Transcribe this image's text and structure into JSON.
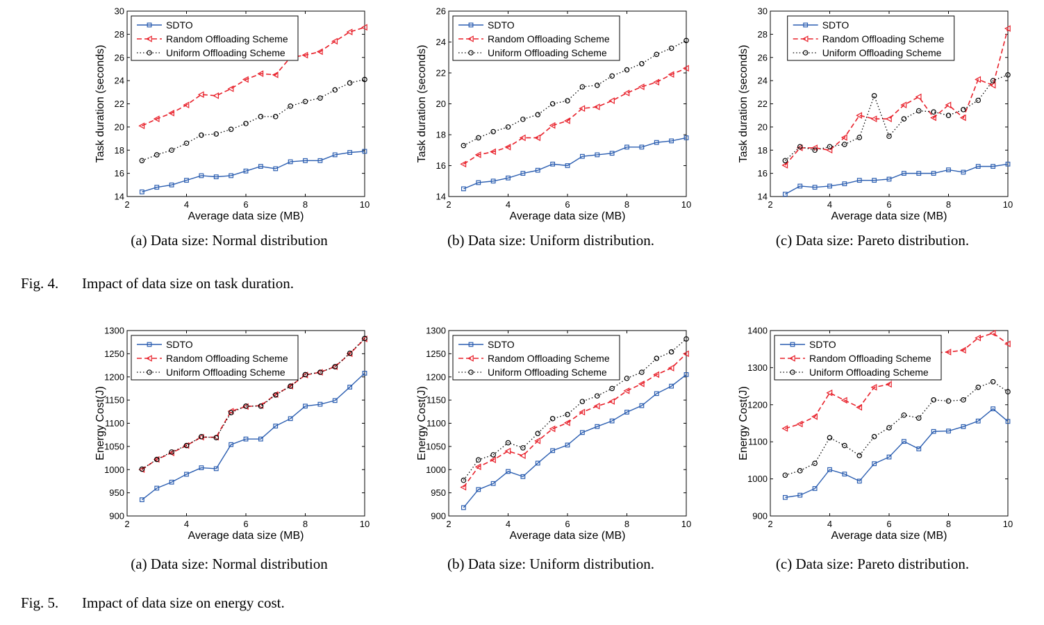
{
  "figures": [
    {
      "id": "fig4",
      "fig_label": "Fig. 4.",
      "caption": "Impact of data size on task duration."
    },
    {
      "id": "fig5",
      "fig_label": "Fig. 5.",
      "caption": "Impact of data size on energy cost."
    }
  ],
  "colors": {
    "sdto": "#2a5db0",
    "random": "#e8202a",
    "uniform": "#000000"
  },
  "chart_data": [
    {
      "type": "line",
      "subcaption": "(a) Data size: Normal distribution",
      "xlabel": "Average data size (MB)",
      "ylabel": "Task duration (seconds)",
      "xlim": [
        2,
        10
      ],
      "ylim": [
        14,
        30
      ],
      "xticks": [
        2,
        4,
        6,
        8,
        10
      ],
      "yticks": [
        14,
        16,
        18,
        20,
        22,
        24,
        26,
        28,
        30
      ],
      "legend": "top-left",
      "x": [
        2.5,
        3,
        3.5,
        4,
        4.5,
        5,
        5.5,
        6,
        6.5,
        7,
        7.5,
        8,
        8.5,
        9,
        9.5,
        10
      ],
      "series": [
        {
          "name": "SDTO",
          "values": [
            14.4,
            14.8,
            15.0,
            15.4,
            15.8,
            15.7,
            15.8,
            16.2,
            16.6,
            16.4,
            17.0,
            17.1,
            17.1,
            17.6,
            17.8,
            17.9
          ]
        },
        {
          "name": "Random Offloading Scheme",
          "values": [
            20.1,
            20.7,
            21.2,
            21.9,
            22.8,
            22.7,
            23.3,
            24.1,
            24.6,
            24.5,
            26.0,
            26.2,
            26.5,
            27.4,
            28.2,
            28.6
          ]
        },
        {
          "name": "Uniform Offloading Scheme",
          "values": [
            17.1,
            17.6,
            18.0,
            18.6,
            19.3,
            19.4,
            19.8,
            20.3,
            20.9,
            20.9,
            21.8,
            22.2,
            22.5,
            23.2,
            23.8,
            24.1
          ]
        }
      ]
    },
    {
      "type": "line",
      "subcaption": "(b) Data size: Uniform distribution.",
      "xlabel": "Average data size (MB)",
      "ylabel": "Task duration (seconds)",
      "xlim": [
        2,
        10
      ],
      "ylim": [
        14,
        26
      ],
      "xticks": [
        2,
        4,
        6,
        8,
        10
      ],
      "yticks": [
        14,
        16,
        18,
        20,
        22,
        24,
        26
      ],
      "legend": "top-left",
      "x": [
        2.5,
        3,
        3.5,
        4,
        4.5,
        5,
        5.5,
        6,
        6.5,
        7,
        7.5,
        8,
        8.5,
        9,
        9.5,
        10
      ],
      "series": [
        {
          "name": "SDTO",
          "values": [
            14.5,
            14.9,
            15.0,
            15.2,
            15.5,
            15.7,
            16.1,
            16.0,
            16.6,
            16.7,
            16.8,
            17.2,
            17.2,
            17.5,
            17.6,
            17.8
          ]
        },
        {
          "name": "Random Offloading Scheme",
          "values": [
            16.1,
            16.7,
            16.9,
            17.2,
            17.8,
            17.8,
            18.6,
            18.9,
            19.7,
            19.8,
            20.2,
            20.7,
            21.1,
            21.4,
            21.9,
            22.3
          ]
        },
        {
          "name": "Uniform Offloading Scheme",
          "values": [
            17.3,
            17.8,
            18.2,
            18.5,
            19.0,
            19.3,
            20.0,
            20.2,
            21.1,
            21.2,
            21.8,
            22.2,
            22.6,
            23.2,
            23.6,
            24.1
          ]
        }
      ]
    },
    {
      "type": "line",
      "subcaption": "(c) Data size: Pareto distribution.",
      "xlabel": "Average data size (MB)",
      "ylabel": "Task duration (seconds)",
      "xlim": [
        2,
        10
      ],
      "ylim": [
        14,
        30
      ],
      "xticks": [
        2,
        4,
        6,
        8,
        10
      ],
      "yticks": [
        14,
        16,
        18,
        20,
        22,
        24,
        26,
        28,
        30
      ],
      "legend": "top-center",
      "x": [
        2.5,
        3,
        3.5,
        4,
        4.5,
        5,
        5.5,
        6,
        6.5,
        7,
        7.5,
        8,
        8.5,
        9,
        9.5,
        10
      ],
      "series": [
        {
          "name": "SDTO",
          "values": [
            14.2,
            14.9,
            14.8,
            14.9,
            15.1,
            15.4,
            15.4,
            15.5,
            16.0,
            16.0,
            16.0,
            16.3,
            16.1,
            16.6,
            16.6,
            16.8
          ]
        },
        {
          "name": "Random Offloading Scheme",
          "values": [
            16.7,
            18.2,
            18.2,
            18.0,
            19.1,
            21.0,
            20.7,
            20.7,
            21.9,
            22.6,
            20.8,
            21.9,
            20.8,
            24.1,
            23.6,
            28.5
          ]
        },
        {
          "name": "Uniform Offloading Scheme",
          "values": [
            17.1,
            18.3,
            18.0,
            18.3,
            18.5,
            19.1,
            22.7,
            19.2,
            20.7,
            21.4,
            21.3,
            21.0,
            21.5,
            22.3,
            24.0,
            24.5
          ]
        }
      ]
    },
    {
      "type": "line",
      "subcaption": "(a) Data size: Normal distribution",
      "xlabel": "Average data size (MB)",
      "ylabel": "Energy Cost(J)",
      "xlim": [
        2,
        10
      ],
      "ylim": [
        900,
        1300
      ],
      "xticks": [
        2,
        4,
        6,
        8,
        10
      ],
      "yticks": [
        900,
        950,
        1000,
        1050,
        1100,
        1150,
        1200,
        1250,
        1300
      ],
      "legend": "top-left",
      "x": [
        2.5,
        3,
        3.5,
        4,
        4.5,
        5,
        5.5,
        6,
        6.5,
        7,
        7.5,
        8,
        8.5,
        9,
        9.5,
        10
      ],
      "series": [
        {
          "name": "SDTO",
          "values": [
            935,
            960,
            973,
            990,
            1004,
            1002,
            1054,
            1066,
            1066,
            1094,
            1110,
            1137,
            1141,
            1149,
            1178,
            1208
          ]
        },
        {
          "name": "Random Offloading Scheme",
          "values": [
            1000,
            1022,
            1036,
            1052,
            1070,
            1070,
            1126,
            1136,
            1138,
            1162,
            1180,
            1204,
            1210,
            1222,
            1250,
            1282
          ]
        },
        {
          "name": "Uniform Offloading Scheme",
          "values": [
            1001,
            1022,
            1038,
            1052,
            1071,
            1069,
            1123,
            1137,
            1137,
            1161,
            1180,
            1205,
            1210,
            1222,
            1251,
            1283
          ]
        }
      ]
    },
    {
      "type": "line",
      "subcaption": "(b) Data size: Uniform distribution.",
      "xlabel": "Average data size (MB)",
      "ylabel": "Energy Cost(J)",
      "xlim": [
        2,
        10
      ],
      "ylim": [
        900,
        1300
      ],
      "xticks": [
        2,
        4,
        6,
        8,
        10
      ],
      "yticks": [
        900,
        950,
        1000,
        1050,
        1100,
        1150,
        1200,
        1250,
        1300
      ],
      "legend": "top-left",
      "x": [
        2.5,
        3,
        3.5,
        4,
        4.5,
        5,
        5.5,
        6,
        6.5,
        7,
        7.5,
        8,
        8.5,
        9,
        9.5,
        10
      ],
      "series": [
        {
          "name": "SDTO",
          "values": [
            918,
            957,
            970,
            996,
            985,
            1014,
            1041,
            1053,
            1080,
            1093,
            1105,
            1124,
            1138,
            1164,
            1180,
            1205
          ]
        },
        {
          "name": "Random Offloading Scheme",
          "values": [
            962,
            1006,
            1021,
            1040,
            1030,
            1062,
            1088,
            1101,
            1124,
            1137,
            1147,
            1170,
            1185,
            1205,
            1219,
            1250
          ]
        },
        {
          "name": "Uniform Offloading Scheme",
          "values": [
            977,
            1021,
            1032,
            1058,
            1047,
            1078,
            1110,
            1119,
            1147,
            1159,
            1175,
            1197,
            1210,
            1240,
            1254,
            1282
          ]
        }
      ]
    },
    {
      "type": "line",
      "subcaption": "(c) Data size: Pareto distribution.",
      "xlabel": "Average data size (MB)",
      "ylabel": "Energy Cost(J)",
      "xlim": [
        2,
        10
      ],
      "ylim": [
        900,
        1400
      ],
      "xticks": [
        2,
        4,
        6,
        8,
        10
      ],
      "yticks": [
        900,
        1000,
        1100,
        1200,
        1300,
        1400
      ],
      "legend": "top-left",
      "x": [
        2.5,
        3,
        3.5,
        4,
        4.5,
        5,
        5.5,
        6,
        6.5,
        7,
        7.5,
        8,
        8.5,
        9,
        9.5,
        10
      ],
      "series": [
        {
          "name": "SDTO",
          "values": [
            950,
            956,
            974,
            1025,
            1013,
            994,
            1041,
            1059,
            1101,
            1081,
            1128,
            1129,
            1141,
            1156,
            1189,
            1155
          ]
        },
        {
          "name": "Random Offloading Scheme",
          "values": [
            1136,
            1148,
            1168,
            1232,
            1212,
            1193,
            1247,
            1255,
            1330,
            1334,
            1340,
            1342,
            1347,
            1380,
            1393,
            1364
          ]
        },
        {
          "name": "Uniform Offloading Scheme",
          "values": [
            1010,
            1022,
            1042,
            1111,
            1090,
            1063,
            1114,
            1138,
            1172,
            1164,
            1213,
            1210,
            1213,
            1247,
            1262,
            1235
          ]
        }
      ]
    }
  ]
}
